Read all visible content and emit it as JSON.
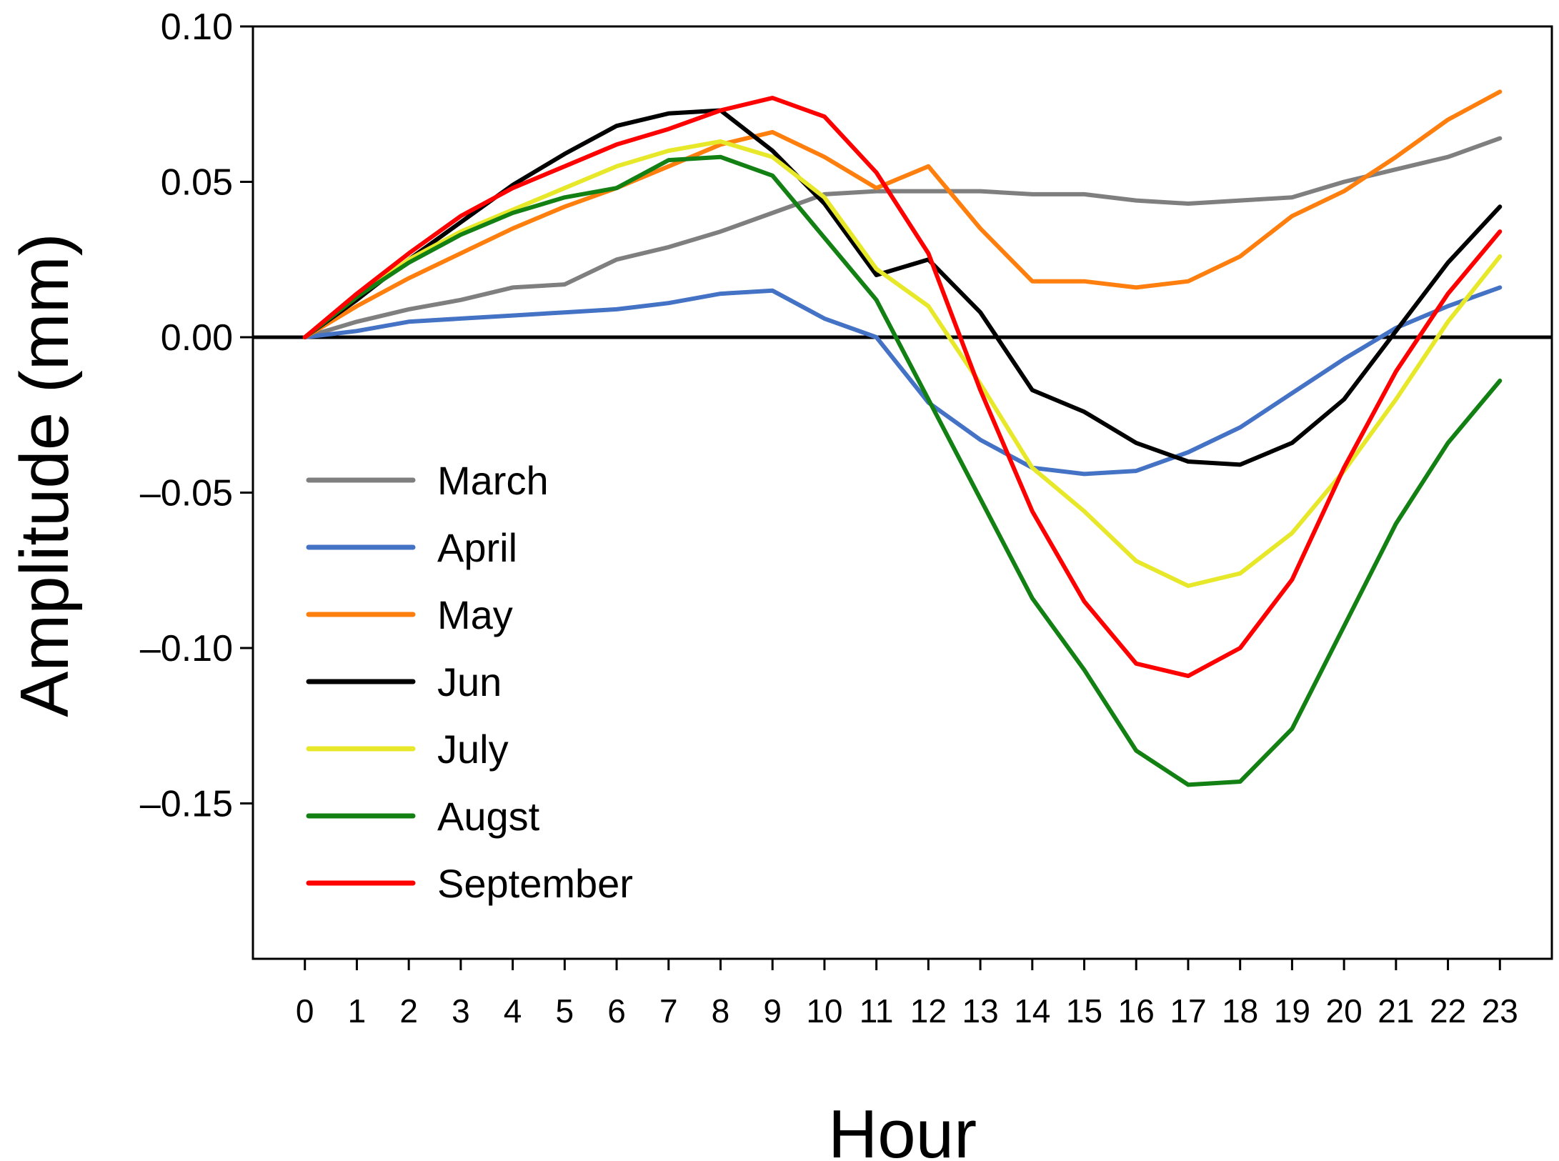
{
  "chart_data": {
    "type": "line",
    "title": "",
    "xlabel": "Hour",
    "ylabel": "Amplitude (mm)",
    "x": [
      0,
      1,
      2,
      3,
      4,
      5,
      6,
      7,
      8,
      9,
      10,
      11,
      12,
      13,
      14,
      15,
      16,
      17,
      18,
      19,
      20,
      21,
      22,
      23
    ],
    "xticks": [
      "0",
      "1",
      "2",
      "3",
      "4",
      "5",
      "6",
      "7",
      "8",
      "9",
      "10",
      "11",
      "12",
      "13",
      "14",
      "15",
      "16",
      "17",
      "18",
      "19",
      "20",
      "21",
      "22",
      "23"
    ],
    "xlim": [
      -1,
      24
    ],
    "ylim": [
      -0.2,
      0.1
    ],
    "yticks": [
      0.1,
      0.05,
      0.0,
      -0.05,
      -0.1,
      -0.15
    ],
    "ytick_labels": [
      "0.10",
      "0.05",
      "0.00",
      "–0.05",
      "–0.10",
      "–0.15"
    ],
    "zero_line": true,
    "grid": false,
    "legend_position": "center-left",
    "series": [
      {
        "name": "March",
        "color": "#7f7f7f",
        "values": [
          0.0,
          0.005,
          0.009,
          0.012,
          0.016,
          0.017,
          0.025,
          0.029,
          0.034,
          0.04,
          0.046,
          0.047,
          0.047,
          0.047,
          0.046,
          0.046,
          0.044,
          0.043,
          0.044,
          0.045,
          0.05,
          0.054,
          0.058,
          0.064
        ]
      },
      {
        "name": "April",
        "color": "#4472c4",
        "values": [
          0.0,
          0.002,
          0.005,
          0.006,
          0.007,
          0.008,
          0.009,
          0.011,
          0.014,
          0.015,
          0.006,
          0.0,
          -0.021,
          -0.033,
          -0.042,
          -0.044,
          -0.043,
          -0.037,
          -0.029,
          -0.018,
          -0.007,
          0.003,
          0.01,
          0.016
        ]
      },
      {
        "name": "May",
        "color": "#ff7f0e",
        "values": [
          0.0,
          0.01,
          0.019,
          0.027,
          0.035,
          0.042,
          0.048,
          0.055,
          0.062,
          0.066,
          0.058,
          0.048,
          0.055,
          0.035,
          0.018,
          0.018,
          0.016,
          0.018,
          0.026,
          0.039,
          0.047,
          0.058,
          0.07,
          0.079
        ]
      },
      {
        "name": "Jun",
        "color": "#000000",
        "values": [
          0.0,
          0.012,
          0.025,
          0.037,
          0.049,
          0.059,
          0.068,
          0.072,
          0.073,
          0.06,
          0.043,
          0.02,
          0.025,
          0.008,
          -0.017,
          -0.024,
          -0.034,
          -0.04,
          -0.041,
          -0.034,
          -0.02,
          0.002,
          0.024,
          0.042
        ]
      },
      {
        "name": "July",
        "color": "#e8e82a",
        "values": [
          0.0,
          0.013,
          0.025,
          0.034,
          0.041,
          0.048,
          0.055,
          0.06,
          0.063,
          0.058,
          0.045,
          0.022,
          0.01,
          -0.015,
          -0.042,
          -0.056,
          -0.072,
          -0.08,
          -0.076,
          -0.063,
          -0.043,
          -0.02,
          0.005,
          0.026
        ]
      },
      {
        "name": "Augst",
        "color": "#128012",
        "values": [
          0.0,
          0.013,
          0.024,
          0.033,
          0.04,
          0.045,
          0.048,
          0.057,
          0.058,
          0.052,
          0.032,
          0.012,
          -0.02,
          -0.052,
          -0.084,
          -0.107,
          -0.133,
          -0.144,
          -0.143,
          -0.126,
          -0.093,
          -0.06,
          -0.034,
          -0.014
        ]
      },
      {
        "name": "September",
        "color": "#ff0000",
        "values": [
          0.0,
          0.014,
          0.027,
          0.039,
          0.048,
          0.055,
          0.062,
          0.067,
          0.073,
          0.077,
          0.071,
          0.053,
          0.027,
          -0.017,
          -0.056,
          -0.085,
          -0.105,
          -0.109,
          -0.1,
          -0.078,
          -0.042,
          -0.011,
          0.014,
          0.034
        ]
      }
    ]
  }
}
